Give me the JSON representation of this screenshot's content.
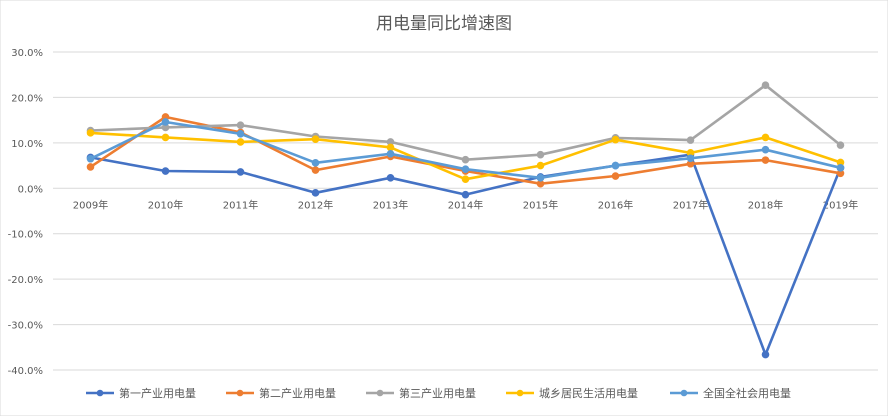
{
  "chart_data": {
    "type": "line",
    "title": "用电量同比增速图",
    "categories": [
      "2009年",
      "2010年",
      "2011年",
      "2012年",
      "2013年",
      "2014年",
      "2015年",
      "2016年",
      "2017年",
      "2018年",
      "2019年"
    ],
    "y_ticks": [
      "30.0%",
      "20.0%",
      "10.0%",
      "0.0%",
      "-10.0%",
      "-20.0%",
      "-30.0%",
      "-40.0%"
    ],
    "ylim": [
      -40,
      30
    ],
    "grid": true,
    "legend_position": "bottom",
    "series": [
      {
        "name": "第一产业用电量",
        "color": "#4472C4",
        "values": [
          6.8,
          3.8,
          3.6,
          -1.0,
          2.3,
          -1.4,
          2.5,
          5.0,
          7.4,
          -36.6,
          4.5
        ]
      },
      {
        "name": "第二产业用电量",
        "color": "#ED7D31",
        "values": [
          4.7,
          15.7,
          12.3,
          4.0,
          7.0,
          3.8,
          1.0,
          2.7,
          5.4,
          6.2,
          3.3
        ]
      },
      {
        "name": "第三产业用电量",
        "color": "#A5A5A5",
        "values": [
          12.7,
          13.4,
          13.9,
          11.4,
          10.2,
          6.3,
          7.4,
          11.1,
          10.6,
          22.7,
          9.5
        ]
      },
      {
        "name": "城乡居民生活用电量",
        "color": "#FFC000",
        "values": [
          12.2,
          11.2,
          10.2,
          10.8,
          9.0,
          2.0,
          5.0,
          10.7,
          7.8,
          11.2,
          5.7
        ]
      },
      {
        "name": "全国全社会用电量",
        "color": "#5B9BD5",
        "values": [
          6.5,
          14.6,
          12.0,
          5.6,
          7.6,
          4.2,
          2.3,
          5.0,
          6.6,
          8.5,
          4.5
        ]
      }
    ]
  }
}
